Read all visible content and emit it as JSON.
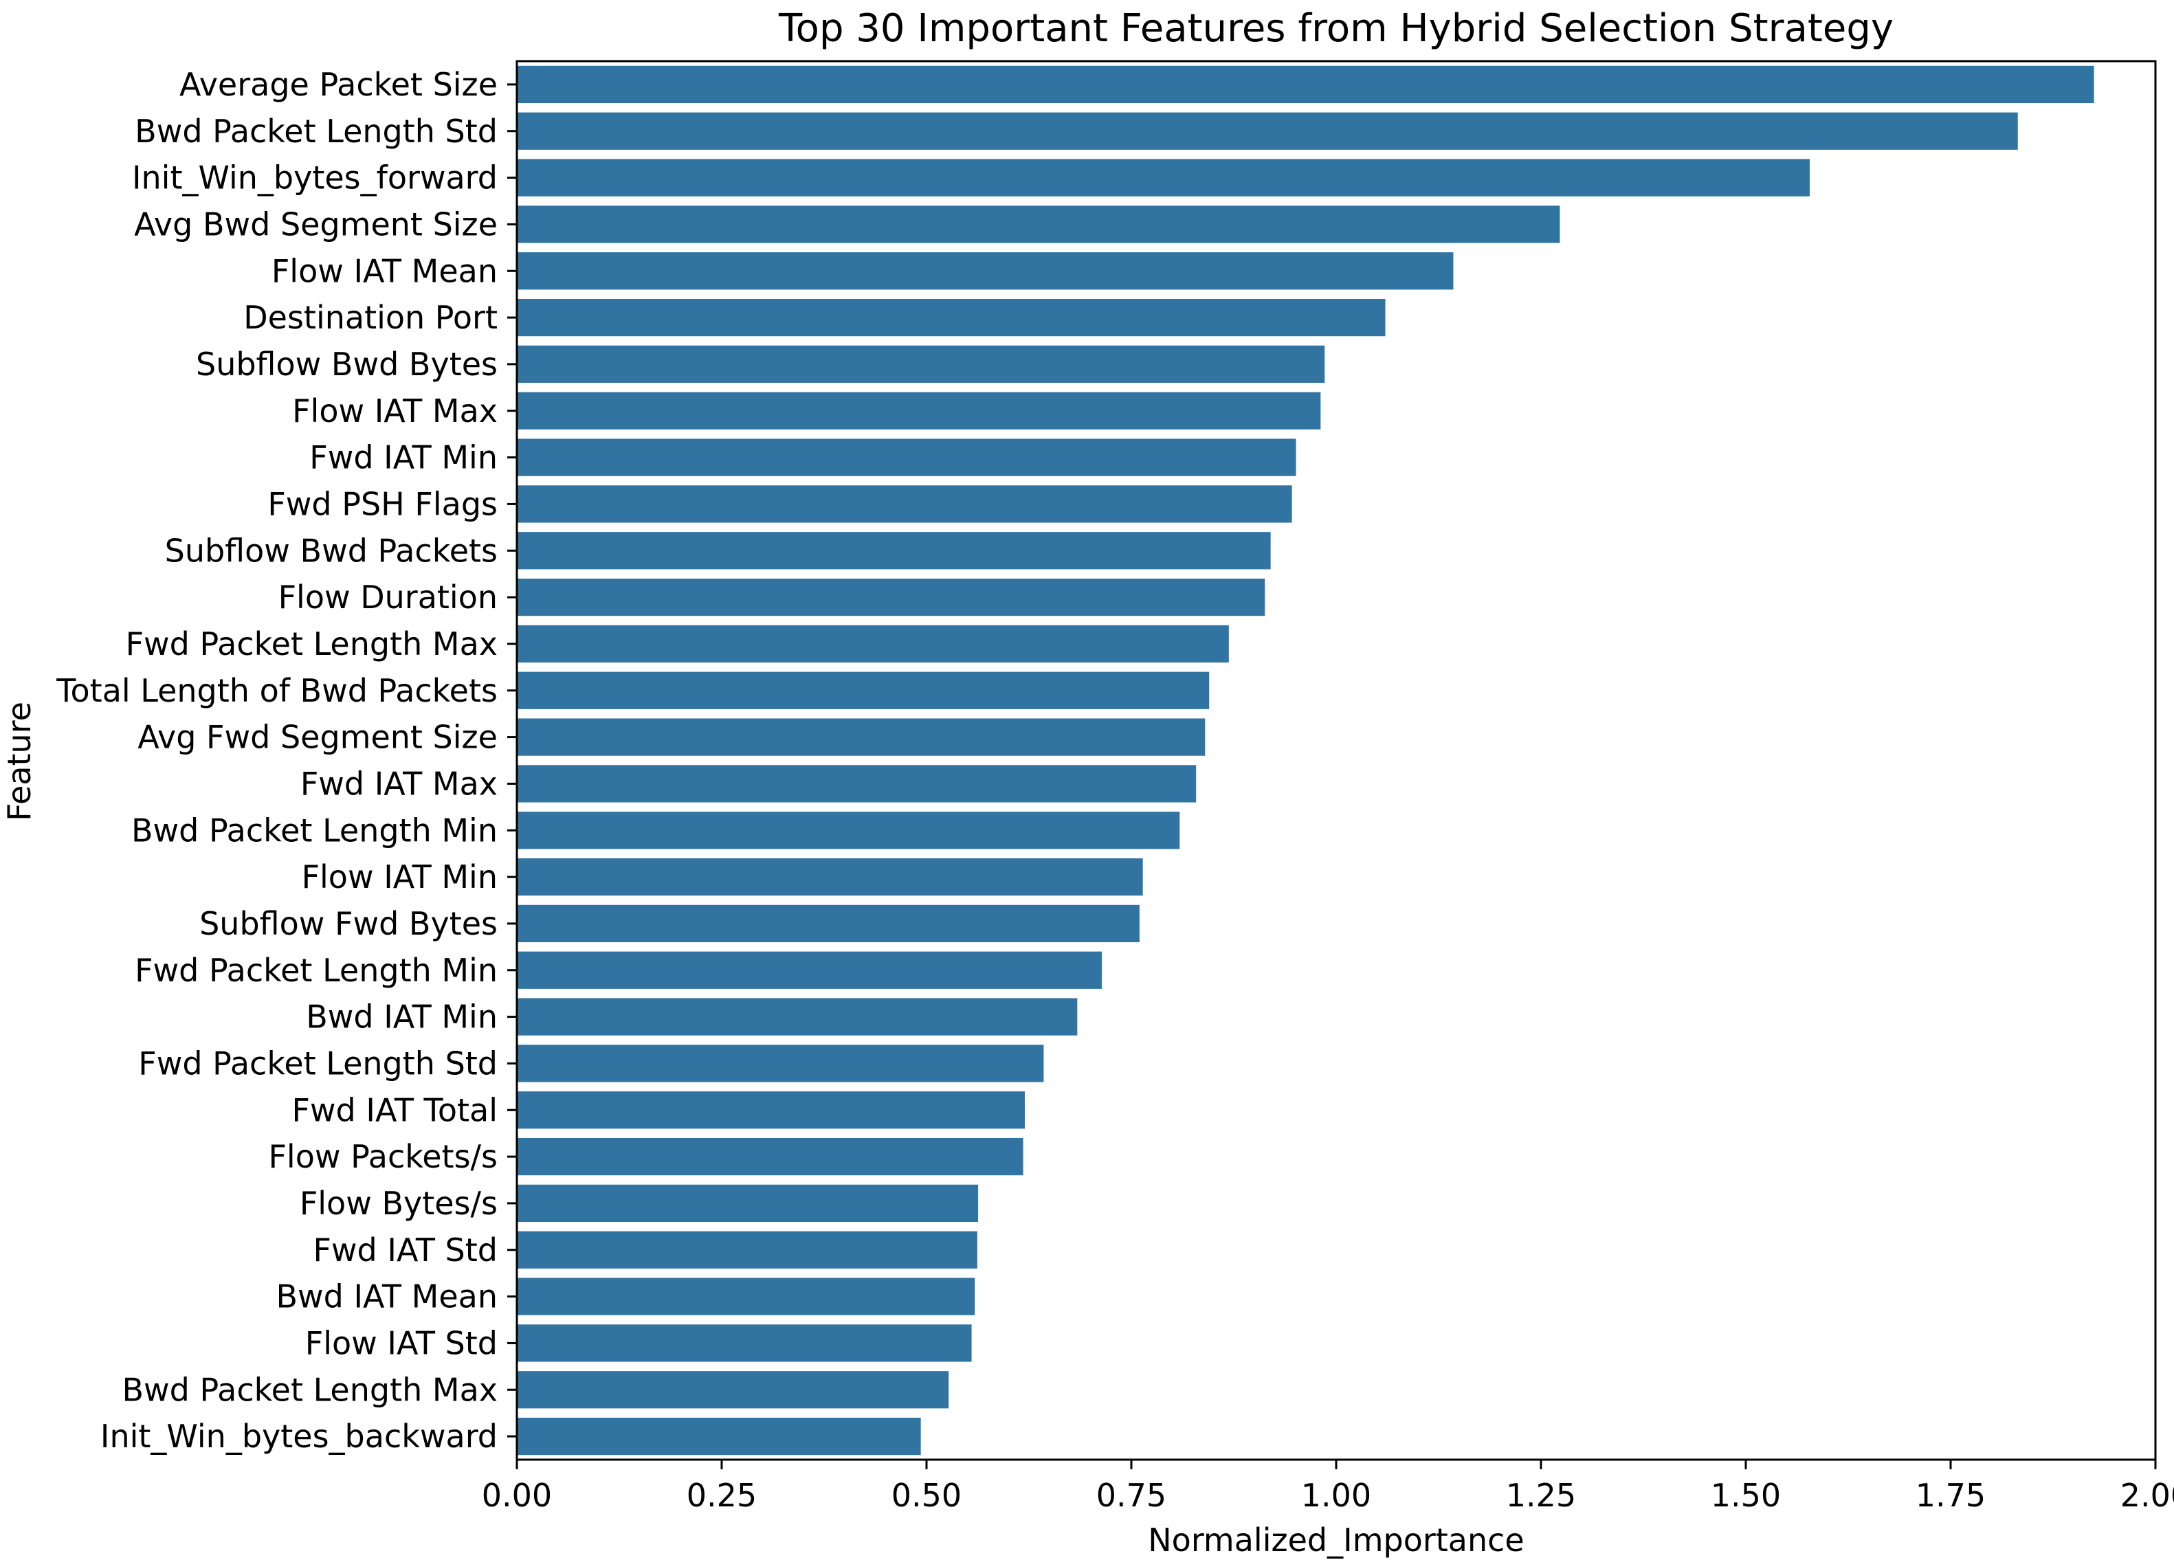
{
  "chart_data": {
    "type": "bar",
    "orientation": "horizontal",
    "title": "Top 30 Important Features from Hybrid Selection Strategy",
    "xlabel": "Normalized_Importance",
    "ylabel": "Feature",
    "xlim": [
      0,
      2.0
    ],
    "xticks": [
      "0.00",
      "0.25",
      "0.50",
      "0.75",
      "1.00",
      "1.25",
      "1.50",
      "1.75",
      "2.00"
    ],
    "grid": false,
    "bar_color": "#3274a1",
    "categories": [
      "Average Packet Size",
      "Bwd Packet Length Std",
      "Init_Win_bytes_forward",
      "Avg Bwd Segment Size",
      "Flow IAT Mean",
      "Destination Port",
      "Subflow Bwd Bytes",
      "Flow IAT Max",
      "Fwd IAT Min",
      "Fwd PSH Flags",
      "Subflow Bwd Packets",
      "Flow Duration",
      "Fwd Packet Length Max",
      "Total Length of Bwd Packets",
      "Avg Fwd Segment Size",
      "Fwd IAT Max",
      "Bwd Packet Length Min",
      "Flow IAT Min",
      "Subflow Fwd Bytes",
      "Fwd Packet Length Min",
      "Bwd IAT Min",
      "Fwd Packet Length Std",
      "Fwd IAT Total",
      "Flow Packets/s",
      "Flow Bytes/s",
      "Fwd IAT Std",
      "Bwd IAT Mean",
      "Flow IAT Std",
      "Bwd Packet Length Max",
      "Init_Win_bytes_backward"
    ],
    "values": [
      1.925,
      1.832,
      1.578,
      1.273,
      1.143,
      1.06,
      0.986,
      0.981,
      0.951,
      0.946,
      0.92,
      0.913,
      0.869,
      0.845,
      0.84,
      0.829,
      0.809,
      0.764,
      0.76,
      0.714,
      0.684,
      0.643,
      0.62,
      0.618,
      0.563,
      0.562,
      0.559,
      0.555,
      0.527,
      0.493
    ]
  }
}
